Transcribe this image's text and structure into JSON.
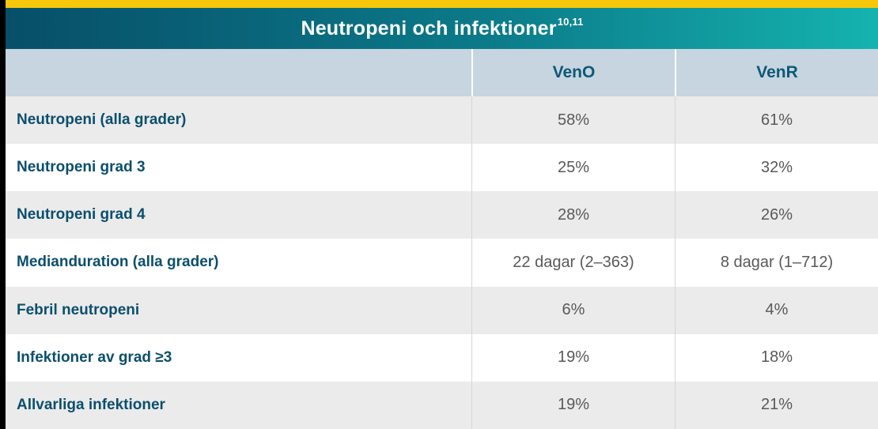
{
  "title": {
    "text": "Neutropeni och infektioner",
    "superscript": "10,11"
  },
  "colors": {
    "top_bar_yellow": "#f7c70c",
    "gradient_left_teal": "#074f68",
    "gradient_right_teal": "#15b3af",
    "header_row_bg": "#c6d5df",
    "header_text": "#0d5876",
    "row_label_text": "#0b4f6c",
    "value_text": "#58595b",
    "row_alt_bg": "#ebebeb",
    "row_bg": "#ffffff",
    "left_edge": "#000000"
  },
  "table": {
    "column_headers": {
      "label": "",
      "veno": "VenO",
      "venr": "VenR"
    },
    "rows": [
      {
        "label": "Neutropeni (alla grader)",
        "veno": "58%",
        "venr": "61%"
      },
      {
        "label": "Neutropeni grad 3",
        "veno": "25%",
        "venr": "32%"
      },
      {
        "label": "Neutropeni grad 4",
        "veno": "28%",
        "venr": "26%"
      },
      {
        "label": "Medianduration (alla grader)",
        "veno": "22 dagar (2–363)",
        "venr": "8 dagar (1–712)"
      },
      {
        "label": "Febril neutropeni",
        "veno": "6%",
        "venr": "4%"
      },
      {
        "label": "Infektioner av grad ≥3",
        "veno": "19%",
        "venr": "18%"
      },
      {
        "label": "Allvarliga infektioner",
        "veno": "19%",
        "venr": "21%"
      }
    ]
  },
  "chart_data": {
    "type": "table",
    "title": "Neutropeni och infektioner",
    "title_reference_superscript": "10,11",
    "columns": [
      "",
      "VenO",
      "VenR"
    ],
    "rows": [
      [
        "Neutropeni (alla grader)",
        "58%",
        "61%"
      ],
      [
        "Neutropeni grad 3",
        "25%",
        "32%"
      ],
      [
        "Neutropeni grad 4",
        "28%",
        "26%"
      ],
      [
        "Medianduration (alla grader)",
        "22 dagar (2–363)",
        "8 dagar (1–712)"
      ],
      [
        "Febril neutropeni",
        "6%",
        "4%"
      ],
      [
        "Infektioner av grad ≥3",
        "19%",
        "18%"
      ],
      [
        "Allvarliga infektioner",
        "19%",
        "21%"
      ]
    ]
  }
}
